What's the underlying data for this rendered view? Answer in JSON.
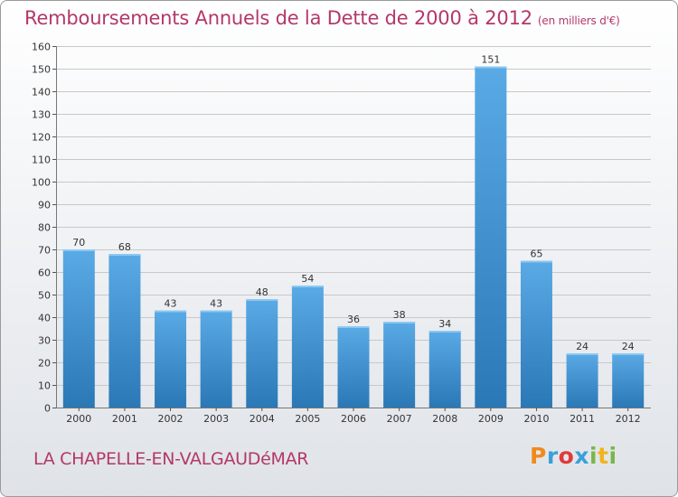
{
  "header": {
    "title": "Remboursements Annuels de la Dette de 2000 à 2012",
    "subtitle": "(en milliers d'€)"
  },
  "footer": {
    "commune": "LA CHAPELLE-EN-VALGAUDéMAR",
    "logo_letters": [
      "P",
      "r",
      "o",
      "x",
      "i",
      "t",
      "i"
    ]
  },
  "colors": {
    "title": "#b3386a",
    "bar_top": "#5aaae6",
    "bar_bottom": "#2a78b6",
    "grid": "#c8c8c8"
  },
  "chart_data": {
    "type": "bar",
    "title": "Remboursements Annuels de la Dette de 2000 à 2012",
    "xlabel": "",
    "ylabel": "",
    "categories": [
      "2000",
      "2001",
      "2002",
      "2003",
      "2004",
      "2005",
      "2006",
      "2007",
      "2008",
      "2009",
      "2010",
      "2011",
      "2012"
    ],
    "values": [
      70,
      68,
      43,
      43,
      48,
      54,
      36,
      38,
      34,
      151,
      65,
      24,
      24
    ],
    "ylim": [
      0,
      160
    ],
    "yticks": [
      0,
      10,
      20,
      30,
      40,
      50,
      60,
      70,
      80,
      90,
      100,
      110,
      120,
      130,
      140,
      150,
      160
    ],
    "grid": true
  }
}
